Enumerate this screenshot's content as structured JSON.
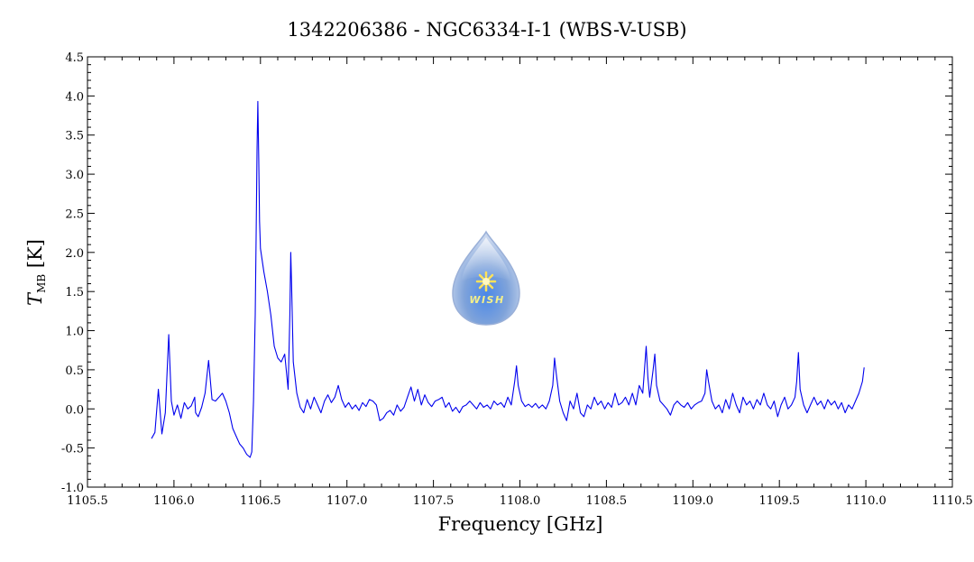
{
  "chart_data": {
    "type": "line",
    "title": "1342206386 - NGC6334-I-1 (WBS-V-USB)",
    "xlabel": "Frequency [GHz]",
    "ylabel_main": "T",
    "ylabel_sub": "MB",
    "ylabel_unit": " [K]",
    "xlim": [
      1105.5,
      1110.5
    ],
    "ylim": [
      -1.0,
      4.5
    ],
    "x_ticks": [
      1105.5,
      1106.0,
      1106.5,
      1107.0,
      1107.5,
      1108.0,
      1108.5,
      1109.0,
      1109.5,
      1110.0,
      1110.5
    ],
    "x_tick_labels": [
      "1105.5",
      "1106.0",
      "1106.5",
      "1107.0",
      "1107.5",
      "1108.0",
      "1108.5",
      "1109.0",
      "1109.5",
      "1110.0",
      "1110.5"
    ],
    "y_ticks": [
      -1.0,
      -0.5,
      0.0,
      0.5,
      1.0,
      1.5,
      2.0,
      2.5,
      3.0,
      3.5,
      4.0,
      4.5
    ],
    "y_tick_labels": [
      "-1.0",
      "-0.5",
      "0.0",
      "0.5",
      "1.0",
      "1.5",
      "2.0",
      "2.5",
      "3.0",
      "3.5",
      "4.0",
      "4.5"
    ],
    "grid": false,
    "line_color": "#0000ee",
    "series": [
      {
        "points": [
          [
            1105.87,
            -0.38
          ],
          [
            1105.89,
            -0.3
          ],
          [
            1105.91,
            0.25
          ],
          [
            1105.93,
            -0.32
          ],
          [
            1105.95,
            -0.05
          ],
          [
            1105.97,
            0.95
          ],
          [
            1105.985,
            0.1
          ],
          [
            1106.0,
            -0.08
          ],
          [
            1106.02,
            0.05
          ],
          [
            1106.04,
            -0.12
          ],
          [
            1106.06,
            0.08
          ],
          [
            1106.08,
            0.0
          ],
          [
            1106.1,
            0.04
          ],
          [
            1106.12,
            0.15
          ],
          [
            1106.125,
            -0.05
          ],
          [
            1106.14,
            -0.1
          ],
          [
            1106.16,
            0.02
          ],
          [
            1106.18,
            0.2
          ],
          [
            1106.2,
            0.62
          ],
          [
            1106.22,
            0.12
          ],
          [
            1106.24,
            0.1
          ],
          [
            1106.26,
            0.15
          ],
          [
            1106.28,
            0.2
          ],
          [
            1106.3,
            0.1
          ],
          [
            1106.32,
            -0.05
          ],
          [
            1106.34,
            -0.25
          ],
          [
            1106.36,
            -0.35
          ],
          [
            1106.38,
            -0.45
          ],
          [
            1106.4,
            -0.5
          ],
          [
            1106.42,
            -0.58
          ],
          [
            1106.44,
            -0.62
          ],
          [
            1106.45,
            -0.55
          ],
          [
            1106.46,
            0.1
          ],
          [
            1106.47,
            1.2
          ],
          [
            1106.475,
            2.2
          ],
          [
            1106.48,
            3.3
          ],
          [
            1106.485,
            3.93
          ],
          [
            1106.49,
            3.2
          ],
          [
            1106.495,
            2.4
          ],
          [
            1106.5,
            2.05
          ],
          [
            1106.52,
            1.75
          ],
          [
            1106.54,
            1.5
          ],
          [
            1106.56,
            1.2
          ],
          [
            1106.58,
            0.8
          ],
          [
            1106.6,
            0.65
          ],
          [
            1106.62,
            0.6
          ],
          [
            1106.64,
            0.7
          ],
          [
            1106.66,
            0.25
          ],
          [
            1106.67,
            1.2
          ],
          [
            1106.675,
            2.0
          ],
          [
            1106.68,
            1.6
          ],
          [
            1106.69,
            0.6
          ],
          [
            1106.71,
            0.2
          ],
          [
            1106.73,
            0.02
          ],
          [
            1106.75,
            -0.05
          ],
          [
            1106.77,
            0.12
          ],
          [
            1106.79,
            0.0
          ],
          [
            1106.81,
            0.15
          ],
          [
            1106.83,
            0.05
          ],
          [
            1106.85,
            -0.05
          ],
          [
            1106.87,
            0.1
          ],
          [
            1106.89,
            0.18
          ],
          [
            1106.91,
            0.08
          ],
          [
            1106.93,
            0.15
          ],
          [
            1106.95,
            0.3
          ],
          [
            1106.97,
            0.12
          ],
          [
            1106.99,
            0.02
          ],
          [
            1107.01,
            0.08
          ],
          [
            1107.03,
            0.0
          ],
          [
            1107.05,
            0.05
          ],
          [
            1107.07,
            -0.02
          ],
          [
            1107.09,
            0.08
          ],
          [
            1107.11,
            0.03
          ],
          [
            1107.13,
            0.12
          ],
          [
            1107.15,
            0.1
          ],
          [
            1107.17,
            0.05
          ],
          [
            1107.19,
            -0.15
          ],
          [
            1107.21,
            -0.12
          ],
          [
            1107.23,
            -0.05
          ],
          [
            1107.25,
            -0.02
          ],
          [
            1107.27,
            -0.08
          ],
          [
            1107.29,
            0.05
          ],
          [
            1107.31,
            -0.03
          ],
          [
            1107.33,
            0.02
          ],
          [
            1107.35,
            0.15
          ],
          [
            1107.37,
            0.28
          ],
          [
            1107.39,
            0.1
          ],
          [
            1107.41,
            0.25
          ],
          [
            1107.43,
            0.05
          ],
          [
            1107.45,
            0.18
          ],
          [
            1107.47,
            0.08
          ],
          [
            1107.49,
            0.03
          ],
          [
            1107.51,
            0.1
          ],
          [
            1107.53,
            0.12
          ],
          [
            1107.55,
            0.15
          ],
          [
            1107.57,
            0.02
          ],
          [
            1107.59,
            0.08
          ],
          [
            1107.61,
            -0.03
          ],
          [
            1107.63,
            0.02
          ],
          [
            1107.65,
            -0.05
          ],
          [
            1107.67,
            0.03
          ],
          [
            1107.69,
            0.05
          ],
          [
            1107.71,
            0.1
          ],
          [
            1107.73,
            0.05
          ],
          [
            1107.75,
            0.0
          ],
          [
            1107.77,
            0.08
          ],
          [
            1107.79,
            0.02
          ],
          [
            1107.81,
            0.05
          ],
          [
            1107.83,
            0.0
          ],
          [
            1107.85,
            0.1
          ],
          [
            1107.87,
            0.05
          ],
          [
            1107.89,
            0.08
          ],
          [
            1107.91,
            0.02
          ],
          [
            1107.93,
            0.15
          ],
          [
            1107.95,
            0.05
          ],
          [
            1107.97,
            0.35
          ],
          [
            1107.98,
            0.55
          ],
          [
            1107.99,
            0.3
          ],
          [
            1108.01,
            0.1
          ],
          [
            1108.03,
            0.03
          ],
          [
            1108.05,
            0.06
          ],
          [
            1108.07,
            0.02
          ],
          [
            1108.09,
            0.07
          ],
          [
            1108.11,
            0.01
          ],
          [
            1108.13,
            0.05
          ],
          [
            1108.15,
            0.0
          ],
          [
            1108.17,
            0.1
          ],
          [
            1108.19,
            0.3
          ],
          [
            1108.2,
            0.65
          ],
          [
            1108.21,
            0.45
          ],
          [
            1108.23,
            0.1
          ],
          [
            1108.25,
            -0.05
          ],
          [
            1108.27,
            -0.15
          ],
          [
            1108.29,
            0.1
          ],
          [
            1108.31,
            0.0
          ],
          [
            1108.33,
            0.2
          ],
          [
            1108.35,
            -0.05
          ],
          [
            1108.37,
            -0.1
          ],
          [
            1108.39,
            0.05
          ],
          [
            1108.41,
            0.0
          ],
          [
            1108.43,
            0.15
          ],
          [
            1108.45,
            0.05
          ],
          [
            1108.47,
            0.1
          ],
          [
            1108.49,
            0.0
          ],
          [
            1108.51,
            0.08
          ],
          [
            1108.53,
            0.02
          ],
          [
            1108.55,
            0.2
          ],
          [
            1108.57,
            0.05
          ],
          [
            1108.59,
            0.08
          ],
          [
            1108.61,
            0.15
          ],
          [
            1108.63,
            0.05
          ],
          [
            1108.65,
            0.2
          ],
          [
            1108.67,
            0.05
          ],
          [
            1108.69,
            0.3
          ],
          [
            1108.71,
            0.2
          ],
          [
            1108.73,
            0.8
          ],
          [
            1108.74,
            0.4
          ],
          [
            1108.75,
            0.15
          ],
          [
            1108.77,
            0.5
          ],
          [
            1108.78,
            0.7
          ],
          [
            1108.79,
            0.3
          ],
          [
            1108.81,
            0.1
          ],
          [
            1108.83,
            0.05
          ],
          [
            1108.85,
            0.0
          ],
          [
            1108.87,
            -0.08
          ],
          [
            1108.89,
            0.05
          ],
          [
            1108.91,
            0.1
          ],
          [
            1108.93,
            0.05
          ],
          [
            1108.95,
            0.02
          ],
          [
            1108.97,
            0.08
          ],
          [
            1108.99,
            0.0
          ],
          [
            1109.01,
            0.05
          ],
          [
            1109.03,
            0.08
          ],
          [
            1109.05,
            0.1
          ],
          [
            1109.07,
            0.2
          ],
          [
            1109.08,
            0.5
          ],
          [
            1109.09,
            0.35
          ],
          [
            1109.11,
            0.1
          ],
          [
            1109.13,
            0.0
          ],
          [
            1109.15,
            0.05
          ],
          [
            1109.17,
            -0.05
          ],
          [
            1109.19,
            0.12
          ],
          [
            1109.21,
            0.0
          ],
          [
            1109.23,
            0.2
          ],
          [
            1109.25,
            0.05
          ],
          [
            1109.27,
            -0.05
          ],
          [
            1109.29,
            0.15
          ],
          [
            1109.31,
            0.05
          ],
          [
            1109.33,
            0.1
          ],
          [
            1109.35,
            0.0
          ],
          [
            1109.37,
            0.12
          ],
          [
            1109.39,
            0.05
          ],
          [
            1109.41,
            0.2
          ],
          [
            1109.43,
            0.05
          ],
          [
            1109.45,
            0.0
          ],
          [
            1109.47,
            0.1
          ],
          [
            1109.49,
            -0.1
          ],
          [
            1109.51,
            0.05
          ],
          [
            1109.53,
            0.15
          ],
          [
            1109.55,
            0.0
          ],
          [
            1109.57,
            0.05
          ],
          [
            1109.59,
            0.15
          ],
          [
            1109.6,
            0.35
          ],
          [
            1109.61,
            0.72
          ],
          [
            1109.62,
            0.25
          ],
          [
            1109.64,
            0.05
          ],
          [
            1109.66,
            -0.05
          ],
          [
            1109.68,
            0.05
          ],
          [
            1109.7,
            0.15
          ],
          [
            1109.72,
            0.05
          ],
          [
            1109.74,
            0.1
          ],
          [
            1109.76,
            0.0
          ],
          [
            1109.78,
            0.12
          ],
          [
            1109.8,
            0.05
          ],
          [
            1109.82,
            0.1
          ],
          [
            1109.84,
            0.0
          ],
          [
            1109.86,
            0.08
          ],
          [
            1109.88,
            -0.05
          ],
          [
            1109.9,
            0.05
          ],
          [
            1109.92,
            0.0
          ],
          [
            1109.94,
            0.1
          ],
          [
            1109.96,
            0.2
          ],
          [
            1109.98,
            0.35
          ],
          [
            1109.99,
            0.53
          ]
        ]
      }
    ]
  },
  "watermark": {
    "text": "WISH",
    "colors": {
      "drop_top": "#e6eefa",
      "drop_bottom": "#7f9fd6",
      "outline": "#9ab0d8",
      "star": "#ffe25a",
      "text": "#f4ef8a"
    }
  }
}
